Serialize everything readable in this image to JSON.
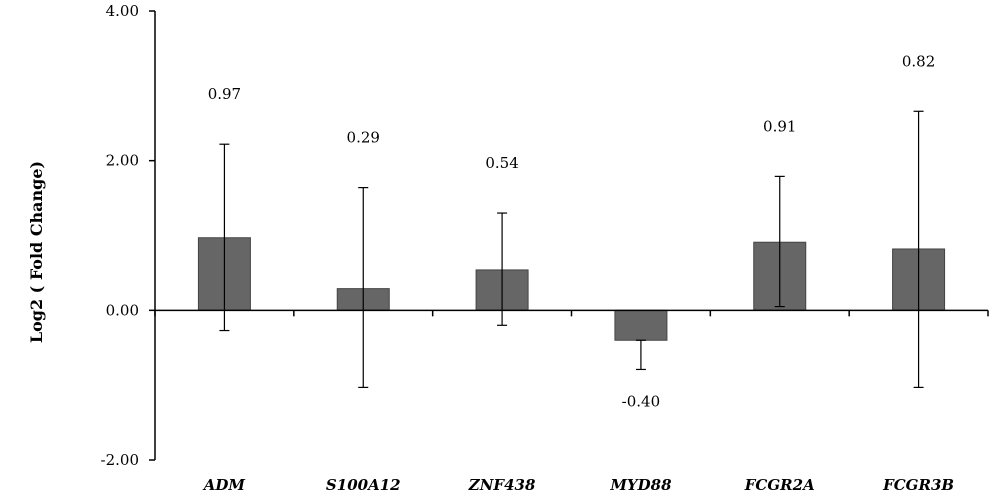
{
  "chart_data": {
    "type": "bar",
    "title": "",
    "xlabel": "",
    "ylabel": "Log2 ( Fold Change)",
    "ylim": [
      -2,
      4
    ],
    "yticks": [
      "4.00",
      "2.00",
      "0.00",
      "-2.00"
    ],
    "ytick_values": [
      4,
      2,
      0,
      -2
    ],
    "grid": false,
    "legend": "none",
    "categories": [
      "ADM",
      "S100A12",
      "ZNF438",
      "MYD88",
      "FCGR2A",
      "FCGR3B"
    ],
    "values": [
      0.97,
      0.29,
      0.54,
      -0.4,
      0.91,
      0.82
    ],
    "value_labels": [
      "0.97",
      "0.29",
      "0.54",
      "-0.40",
      "0.91",
      "0.82"
    ],
    "error_upper": [
      2.22,
      1.64,
      1.3,
      -0.4,
      1.79,
      2.66
    ],
    "error_lower": [
      -0.27,
      -1.03,
      -0.2,
      -0.79,
      0.05,
      -1.03
    ],
    "bar_color": "#666666"
  }
}
